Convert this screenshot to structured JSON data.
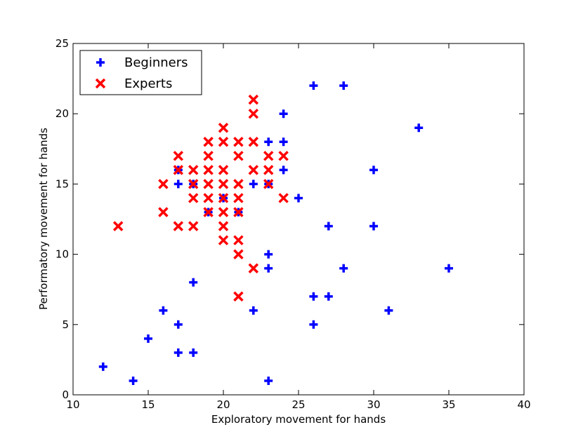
{
  "chart_data": {
    "type": "scatter",
    "title": "",
    "xlabel": "Exploratory movement for hands",
    "ylabel": "Performatory movement for hands",
    "xlim": [
      10,
      40
    ],
    "ylim": [
      0,
      25
    ],
    "xticks": [
      10,
      15,
      20,
      25,
      30,
      35,
      40
    ],
    "yticks": [
      0,
      5,
      10,
      15,
      20,
      25
    ],
    "grid": false,
    "legend_position": "top-left",
    "series": [
      {
        "name": "Beginners",
        "marker": "plus",
        "color": "#0000ff",
        "points": [
          [
            12,
            2
          ],
          [
            14,
            1
          ],
          [
            15,
            4
          ],
          [
            16,
            6
          ],
          [
            17,
            5
          ],
          [
            17,
            3
          ],
          [
            17,
            15
          ],
          [
            17,
            16
          ],
          [
            18,
            8
          ],
          [
            18,
            3
          ],
          [
            18,
            15
          ],
          [
            19,
            13
          ],
          [
            20,
            14
          ],
          [
            21,
            13
          ],
          [
            22,
            15
          ],
          [
            22,
            6
          ],
          [
            23,
            18
          ],
          [
            23,
            15
          ],
          [
            23,
            10
          ],
          [
            23,
            9
          ],
          [
            23,
            1
          ],
          [
            24,
            20
          ],
          [
            24,
            18
          ],
          [
            24,
            16
          ],
          [
            25,
            14
          ],
          [
            26,
            22
          ],
          [
            26,
            7
          ],
          [
            26,
            5
          ],
          [
            27,
            12
          ],
          [
            27,
            7
          ],
          [
            28,
            22
          ],
          [
            28,
            9
          ],
          [
            30,
            16
          ],
          [
            30,
            12
          ],
          [
            31,
            6
          ],
          [
            33,
            19
          ],
          [
            35,
            9
          ]
        ]
      },
      {
        "name": "Experts",
        "marker": "x",
        "color": "#ff0000",
        "points": [
          [
            13,
            12
          ],
          [
            16,
            15
          ],
          [
            16,
            13
          ],
          [
            17,
            17
          ],
          [
            17,
            16
          ],
          [
            17,
            12
          ],
          [
            18,
            16
          ],
          [
            18,
            15
          ],
          [
            18,
            14
          ],
          [
            18,
            12
          ],
          [
            19,
            18
          ],
          [
            19,
            17
          ],
          [
            19,
            16
          ],
          [
            19,
            15
          ],
          [
            19,
            14
          ],
          [
            19,
            13
          ],
          [
            20,
            19
          ],
          [
            20,
            18
          ],
          [
            20,
            16
          ],
          [
            20,
            15
          ],
          [
            20,
            14
          ],
          [
            20,
            13
          ],
          [
            20,
            12
          ],
          [
            20,
            11
          ],
          [
            21,
            18
          ],
          [
            21,
            17
          ],
          [
            21,
            15
          ],
          [
            21,
            14
          ],
          [
            21,
            13
          ],
          [
            21,
            11
          ],
          [
            21,
            10
          ],
          [
            21,
            7
          ],
          [
            22,
            21
          ],
          [
            22,
            20
          ],
          [
            22,
            18
          ],
          [
            22,
            16
          ],
          [
            22,
            9
          ],
          [
            23,
            17
          ],
          [
            23,
            16
          ],
          [
            23,
            15
          ],
          [
            24,
            17
          ],
          [
            24,
            14
          ]
        ]
      }
    ]
  }
}
